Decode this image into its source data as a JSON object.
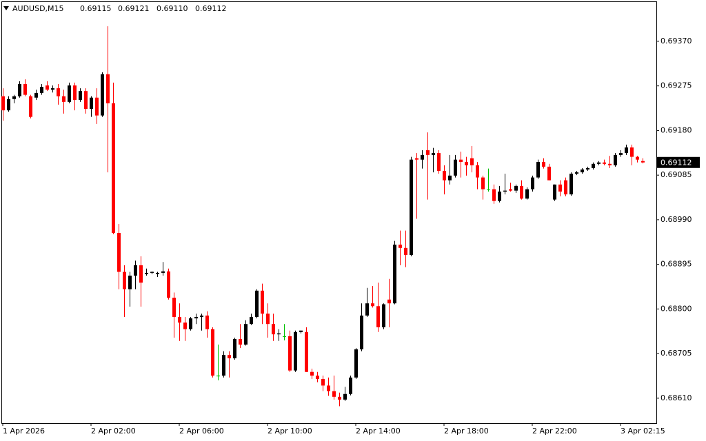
{
  "chart_data": {
    "type": "candlestick",
    "symbol": "AUDUSD,M15",
    "last_labels": {
      "open": "0.69115",
      "high": "0.69121",
      "low": "0.69110",
      "close": "0.69112"
    },
    "up_color": "#000000",
    "down_color": "#ff0000",
    "doji_color": "#00c000",
    "grid": false,
    "categories": [
      "1 Apr 2026",
      null,
      null,
      null,
      null,
      null,
      null,
      null,
      null,
      null,
      null,
      null,
      null,
      null,
      null,
      null,
      "2 Apr 02:00",
      null,
      null,
      null,
      null,
      null,
      null,
      null,
      null,
      null,
      null,
      null,
      null,
      null,
      null,
      null,
      "2 Apr 06:00",
      null,
      null,
      null,
      null,
      null,
      null,
      null,
      null,
      null,
      null,
      null,
      null,
      null,
      null,
      null,
      "2 Apr 10:00",
      null,
      null,
      null,
      null,
      null,
      null,
      null,
      null,
      null,
      null,
      null,
      null,
      null,
      null,
      null,
      "2 Apr 14:00",
      null,
      null,
      null,
      null,
      null,
      null,
      null,
      null,
      null,
      null,
      null,
      null,
      null,
      null,
      null,
      "2 Apr 18:00",
      null,
      null,
      null,
      null,
      null,
      null,
      null,
      null,
      null,
      null,
      null,
      null,
      null,
      null,
      null,
      "2 Apr 22:00",
      null,
      null,
      null,
      null,
      null,
      null,
      null,
      null,
      null,
      null,
      null,
      null,
      null,
      null,
      null,
      "3 Apr 02:15",
      null,
      null,
      null,
      null
    ],
    "open": [
      0.69253,
      0.69223,
      0.69247,
      0.69253,
      0.69279,
      0.69253,
      0.6925,
      0.6926,
      0.69276,
      0.69267,
      0.6927,
      0.69253,
      0.69241,
      0.69276,
      0.69245,
      0.69264,
      0.69226,
      0.6925,
      0.69212,
      0.693,
      0.69238,
      0.68962,
      0.68879,
      0.68842,
      0.68871,
      0.68893,
      0.68874,
      0.68877,
      0.68874,
      0.68877,
      0.6888,
      0.68824,
      0.68783,
      0.68771,
      0.68757,
      0.6878,
      0.68783,
      0.68786,
      0.68757,
      0.68658,
      0.68658,
      0.68702,
      0.68695,
      0.68736,
      0.68724,
      0.68768,
      0.68783,
      0.68839,
      0.6879,
      0.68768,
      0.68746,
      0.68742,
      0.68742,
      0.68669,
      0.68751,
      0.68751,
      0.68666,
      0.68658,
      0.68651,
      0.68637,
      0.68625,
      0.68613,
      0.68607,
      0.68619,
      0.68654,
      0.68714,
      0.68786,
      0.68812,
      0.68806,
      0.68761,
      0.6882,
      0.68812,
      0.68937,
      0.6893,
      0.68915,
      0.69121,
      0.69118,
      0.69138,
      0.69128,
      0.69132,
      0.69094,
      0.69074,
      0.69084,
      0.69118,
      0.69113,
      0.69121,
      0.69106,
      0.6908,
      0.69055,
      0.69055,
      0.6903,
      0.6905,
      0.69055,
      0.69052,
      0.69062,
      0.69035,
      0.69055,
      0.6908,
      0.69113,
      0.69103,
      0.69033,
      0.69065,
      0.69074,
      0.69044,
      0.69088,
      0.69091,
      0.69097,
      0.691,
      0.69109,
      0.69112,
      0.69109,
      0.69106,
      0.69128,
      0.69132,
      0.69144,
      0.69124,
      0.69115
    ],
    "high": [
      0.6927,
      0.69253,
      0.69256,
      0.69285,
      0.69289,
      0.69256,
      0.69267,
      0.69279,
      0.69285,
      0.69276,
      0.69279,
      0.69267,
      0.69282,
      0.69282,
      0.6927,
      0.6927,
      0.69253,
      0.6927,
      0.69304,
      0.69402,
      0.69282,
      0.68981,
      0.68893,
      0.68879,
      0.68903,
      0.68912,
      0.68886,
      0.6888,
      0.68879,
      0.689,
      0.68886,
      0.68835,
      0.68812,
      0.68783,
      0.68783,
      0.6879,
      0.6879,
      0.68795,
      0.68761,
      0.68724,
      0.6871,
      0.6871,
      0.68739,
      0.68768,
      0.68776,
      0.6879,
      0.68842,
      0.68854,
      0.68812,
      0.6879,
      0.68757,
      0.68768,
      0.68754,
      0.68754,
      0.68754,
      0.68761,
      0.68673,
      0.68666,
      0.68658,
      0.68654,
      0.68658,
      0.68622,
      0.68634,
      0.68658,
      0.68717,
      0.68812,
      0.68845,
      0.68849,
      0.68856,
      0.68812,
      0.68864,
      0.68945,
      0.68967,
      0.68967,
      0.69124,
      0.69132,
      0.69138,
      0.69176,
      0.69143,
      0.69138,
      0.69106,
      0.69128,
      0.69128,
      0.69135,
      0.69124,
      0.69147,
      0.69113,
      0.69084,
      0.69099,
      0.69065,
      0.69062,
      0.69088,
      0.69069,
      0.69065,
      0.69074,
      0.69059,
      0.69084,
      0.69118,
      0.69121,
      0.69109,
      0.69065,
      0.69074,
      0.6908,
      0.69091,
      0.69094,
      0.691,
      0.69103,
      0.69112,
      0.69115,
      0.69118,
      0.69126,
      0.69132,
      0.69138,
      0.6915,
      0.6915,
      0.69126,
      0.69121
    ],
    "low": [
      0.69201,
      0.6922,
      0.69238,
      0.6925,
      0.69253,
      0.69206,
      0.69245,
      0.69256,
      0.69264,
      0.69261,
      0.69235,
      0.69216,
      0.69238,
      0.69223,
      0.69241,
      0.69216,
      0.69209,
      0.69194,
      0.69209,
      0.69091,
      0.68959,
      0.68842,
      0.68783,
      0.68805,
      0.68842,
      0.68805,
      0.68871,
      0.68874,
      0.68868,
      0.68871,
      0.6882,
      0.68739,
      0.68732,
      0.68732,
      0.68754,
      0.68768,
      0.68754,
      0.68739,
      0.68654,
      0.68648,
      0.68654,
      0.68654,
      0.68692,
      0.68717,
      0.68722,
      0.68766,
      0.6878,
      0.68768,
      0.68739,
      0.68732,
      0.68732,
      0.68733,
      0.68666,
      0.68666,
      0.68748,
      0.68666,
      0.68651,
      0.68644,
      0.68625,
      0.68615,
      0.68607,
      0.68593,
      0.68604,
      0.68616,
      0.68651,
      0.6871,
      0.68783,
      0.68803,
      0.68751,
      0.68757,
      0.68761,
      0.6881,
      0.68893,
      0.68889,
      0.68912,
      0.68992,
      0.69099,
      0.69033,
      0.69091,
      0.69088,
      0.69044,
      0.69065,
      0.6908,
      0.6908,
      0.69084,
      0.69091,
      0.69055,
      0.69033,
      0.6905,
      0.69024,
      0.69027,
      0.69044,
      0.6905,
      0.69047,
      0.69033,
      0.69033,
      0.6905,
      0.69077,
      0.69099,
      0.69074,
      0.6903,
      0.6904,
      0.6904,
      0.69041,
      0.69085,
      0.69088,
      0.69094,
      0.69097,
      0.69106,
      0.69106,
      0.691,
      0.69103,
      0.69124,
      0.69128,
      0.69106,
      0.69112,
      0.6911
    ],
    "close": [
      0.69223,
      0.69247,
      0.69253,
      0.69279,
      0.69256,
      0.69209,
      0.6926,
      0.69273,
      0.69267,
      0.6927,
      0.69253,
      0.69241,
      0.69276,
      0.69245,
      0.69264,
      0.69226,
      0.6925,
      0.69212,
      0.693,
      0.69238,
      0.68962,
      0.68879,
      0.68842,
      0.68871,
      0.68893,
      0.68856,
      0.68877,
      0.68879,
      0.68877,
      0.6888,
      0.68824,
      0.68783,
      0.68771,
      0.68757,
      0.6878,
      0.68783,
      0.68786,
      0.68757,
      0.68658,
      0.68658,
      0.68702,
      0.68695,
      0.68736,
      0.68724,
      0.68768,
      0.68783,
      0.68839,
      0.6879,
      0.68768,
      0.68746,
      0.68748,
      0.68742,
      0.68669,
      0.68751,
      0.68754,
      0.68666,
      0.68658,
      0.68651,
      0.68637,
      0.68625,
      0.68613,
      0.68607,
      0.68619,
      0.68654,
      0.68714,
      0.68786,
      0.68812,
      0.68806,
      0.68761,
      0.6881,
      0.68812,
      0.68937,
      0.6893,
      0.68915,
      0.69118,
      0.69118,
      0.69128,
      0.69128,
      0.69132,
      0.69094,
      0.69074,
      0.69084,
      0.69118,
      0.69113,
      0.69106,
      0.69106,
      0.6908,
      0.69055,
      0.69055,
      0.6903,
      0.6905,
      0.69052,
      0.69052,
      0.69062,
      0.69035,
      0.69055,
      0.6908,
      0.69113,
      0.69103,
      0.69074,
      0.69065,
      0.6905,
      0.69044,
      0.69088,
      0.69091,
      0.69097,
      0.691,
      0.69109,
      0.69112,
      0.69109,
      0.69106,
      0.69128,
      0.69132,
      0.69144,
      0.69124,
      0.69118,
      0.69112
    ],
    "ylim": [
      0.68557,
      0.69455
    ],
    "yticks": [
      {
        "value": 0.6937,
        "label": "0.69370"
      },
      {
        "value": 0.69275,
        "label": "0.69275"
      },
      {
        "value": 0.6918,
        "label": "0.69180"
      },
      {
        "value": 0.69085,
        "label": "0.69085"
      },
      {
        "value": 0.6899,
        "label": "0.68990"
      },
      {
        "value": 0.68895,
        "label": "0.68895"
      },
      {
        "value": 0.688,
        "label": "0.68800"
      },
      {
        "value": 0.68705,
        "label": "0.68705"
      },
      {
        "value": 0.6861,
        "label": "0.68610"
      }
    ]
  }
}
